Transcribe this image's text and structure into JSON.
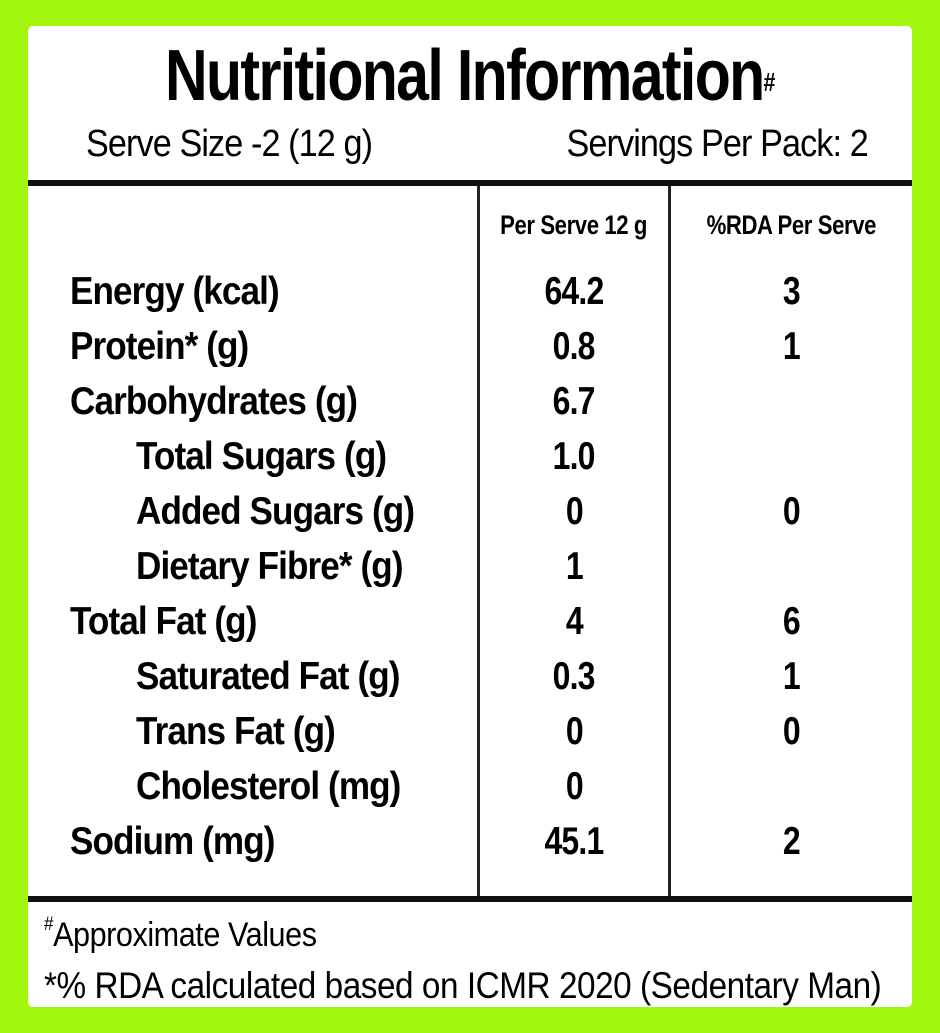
{
  "colors": {
    "frame": "#A3F70F",
    "background": "#FFFFFF",
    "text": "#000000",
    "rule": "#111111",
    "divider": "#222222"
  },
  "label": {
    "title": "Nutritional Information",
    "title_sup": "#",
    "serve_size": "Serve Size -2 (12 g)",
    "servings_per_pack": "Servings Per Pack: 2",
    "col_headers": {
      "per_serve": "Per Serve 12 g",
      "rda_per_serve": "%RDA Per Serve"
    },
    "rows": [
      {
        "name": "Energy (kcal)",
        "per_serve": "64.2",
        "rda": "3"
      },
      {
        "name": "Protein* (g)",
        "per_serve": "0.8",
        "rda": "1"
      },
      {
        "name": "Carbohydrates (g)",
        "per_serve": "6.7",
        "rda": ""
      },
      {
        "name": "Total Sugars (g)",
        "per_serve": "1.0",
        "rda": ""
      },
      {
        "name": "Added Sugars (g)",
        "per_serve": "0",
        "rda": "0"
      },
      {
        "name": "Dietary Fibre* (g)",
        "per_serve": "1",
        "rda": ""
      },
      {
        "name": "Total Fat (g)",
        "per_serve": "4",
        "rda": "6"
      },
      {
        "name": "Saturated Fat (g)",
        "per_serve": "0.3",
        "rda": "1"
      },
      {
        "name": "Trans Fat (g)",
        "per_serve": "0",
        "rda": "0"
      },
      {
        "name": "Cholesterol (mg)",
        "per_serve": "0",
        "rda": ""
      },
      {
        "name": "Sodium (mg)",
        "per_serve": "45.1",
        "rda": "2"
      }
    ],
    "footnotes": {
      "approx_sup": "#",
      "approx_text": "Approximate Values",
      "rda_text": "*% RDA calculated based on ICMR 2020 (Sedentary Man)"
    }
  }
}
